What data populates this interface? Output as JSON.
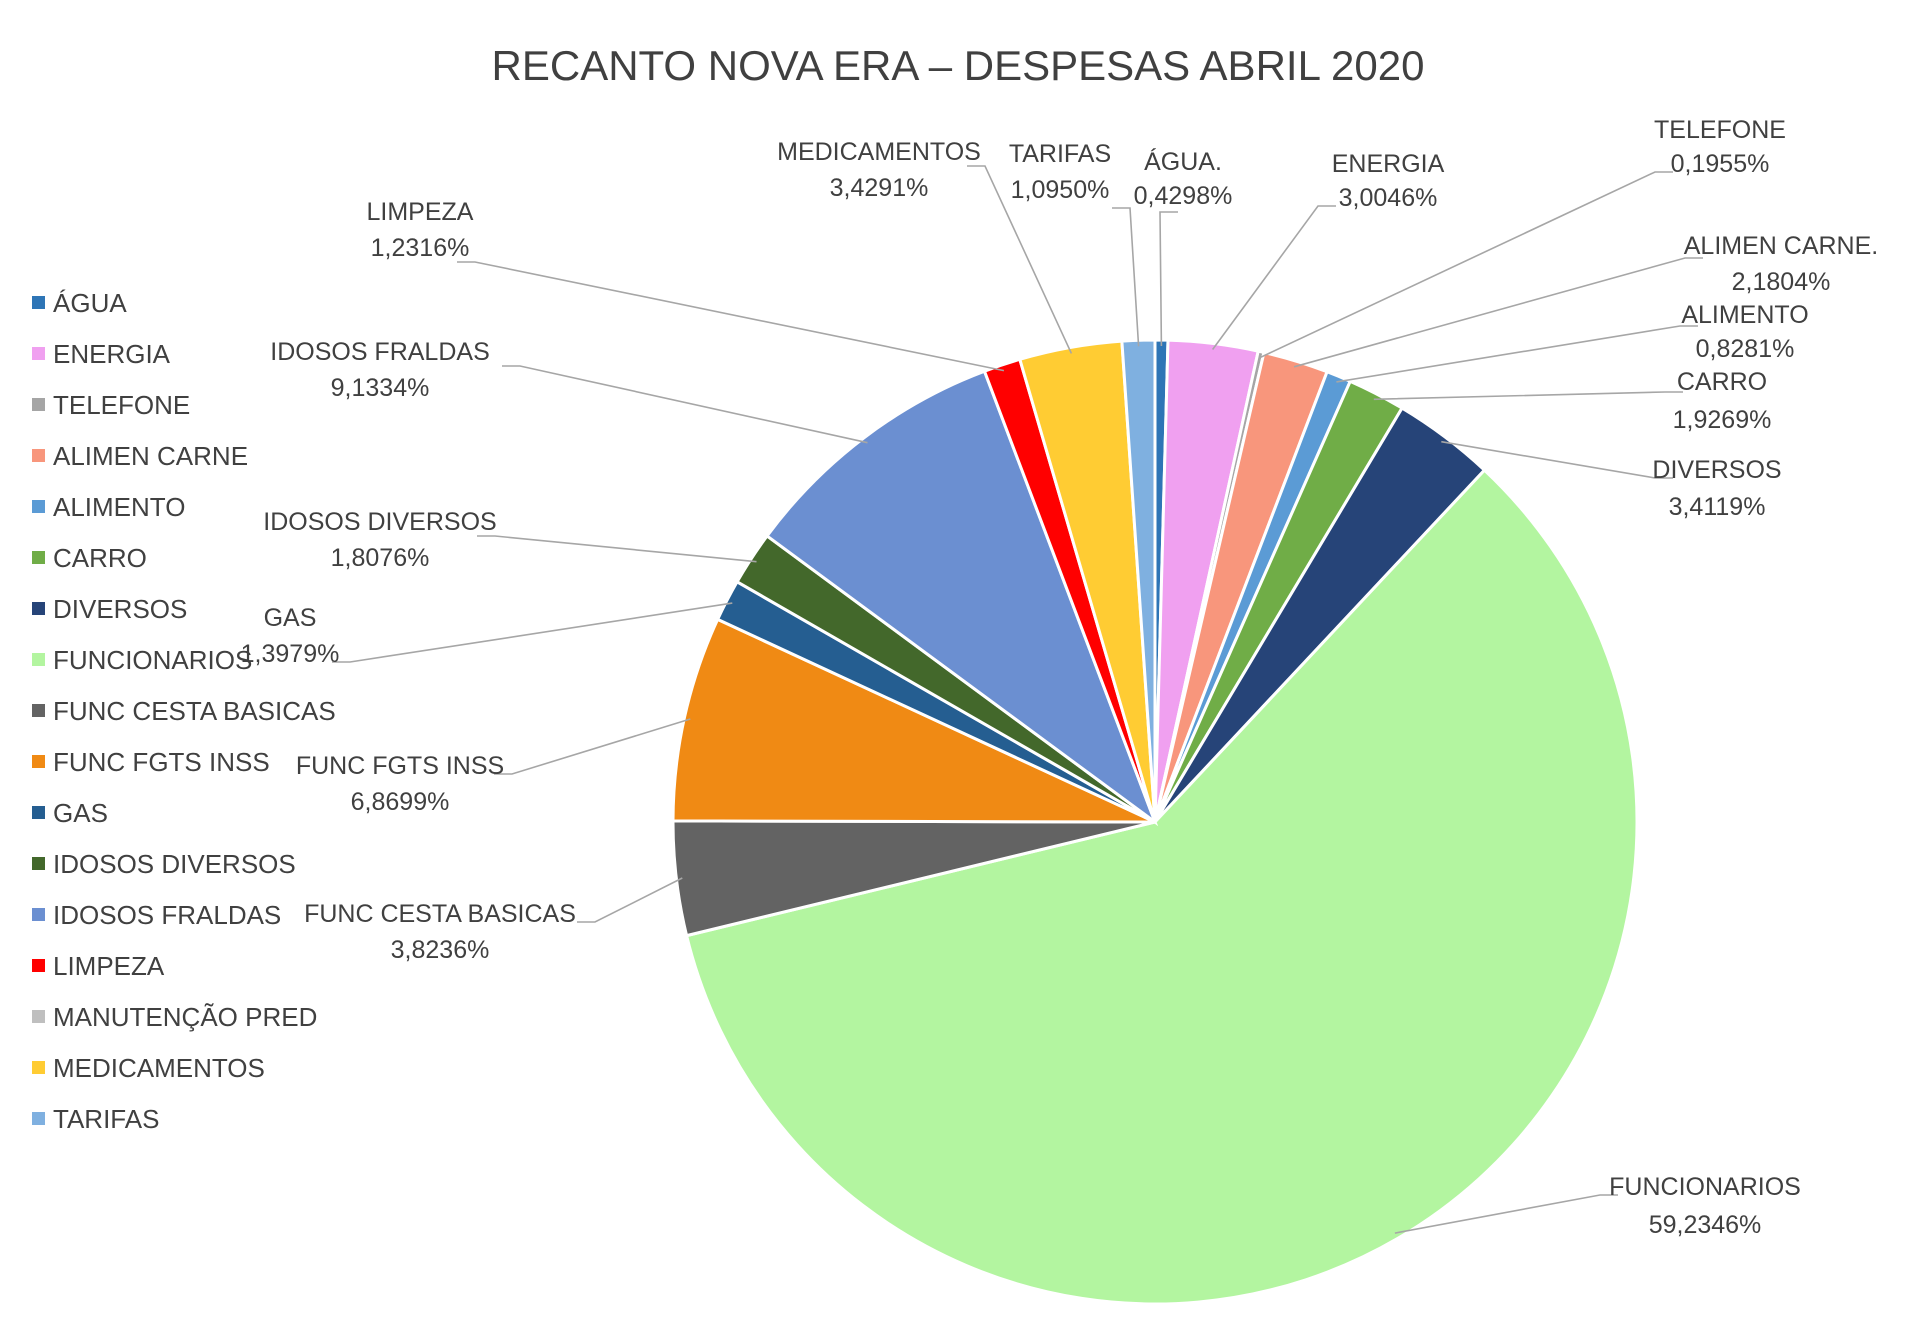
{
  "chart_data": {
    "type": "pie",
    "title": "RECANTO NOVA ERA – DESPESAS ABRIL 2020",
    "legend_position": "left",
    "legend": [
      {
        "name": "ÁGUA",
        "color": "#2e75b6"
      },
      {
        "name": "ENERGIA",
        "color": "#f0a0f0"
      },
      {
        "name": "TELEFONE",
        "color": "#a5a5a5"
      },
      {
        "name": "ALIMEN CARNE",
        "color": "#f8967c"
      },
      {
        "name": "ALIMENTO",
        "color": "#5b9bd5"
      },
      {
        "name": "CARRO",
        "color": "#70ad47"
      },
      {
        "name": "DIVERSOS",
        "color": "#264478"
      },
      {
        "name": "FUNCIONARIOS",
        "color": "#b3f5a0"
      },
      {
        "name": "FUNC CESTA BASICAS",
        "color": "#636363"
      },
      {
        "name": "FUNC FGTS INSS",
        "color": "#f08a14"
      },
      {
        "name": "GAS",
        "color": "#255e91"
      },
      {
        "name": "IDOSOS DIVERSOS",
        "color": "#43682b"
      },
      {
        "name": "IDOSOS FRALDAS",
        "color": "#6b8fd1"
      },
      {
        "name": "LIMPEZA",
        "color": "#ff0000"
      },
      {
        "name": "MANUTENÇÃO PRED",
        "color": "#bfbfbf"
      },
      {
        "name": "MEDICAMENTOS",
        "color": "#ffcc33"
      },
      {
        "name": "TARIFAS",
        "color": "#7fb0e0"
      }
    ],
    "slices": [
      {
        "name": "ÁGUA",
        "label": "ÁGUA.",
        "value": 0.4298,
        "value_label": "0,4298%",
        "color": "#2e75b6"
      },
      {
        "name": "ENERGIA",
        "label": "ENERGIA",
        "value": 3.0046,
        "value_label": "3,0046%",
        "color": "#f0a0f0"
      },
      {
        "name": "TELEFONE",
        "label": "TELEFONE",
        "value": 0.1955,
        "value_label": "0,1955%",
        "color": "#a5a5a5"
      },
      {
        "name": "ALIMEN CARNE",
        "label": "ALIMEN CARNE.",
        "value": 2.1804,
        "value_label": "2,1804%",
        "color": "#f8967c"
      },
      {
        "name": "ALIMENTO",
        "label": "ALIMENTO",
        "value": 0.8281,
        "value_label": "0,8281%",
        "color": "#5b9bd5"
      },
      {
        "name": "CARRO",
        "label": "CARRO",
        "value": 1.9269,
        "value_label": "1,9269%",
        "color": "#70ad47"
      },
      {
        "name": "DIVERSOS",
        "label": "DIVERSOS",
        "value": 3.4119,
        "value_label": "3,4119%",
        "color": "#264478"
      },
      {
        "name": "FUNCIONARIOS",
        "label": "FUNCIONARIOS",
        "value": 59.2346,
        "value_label": "59,2346%",
        "color": "#b3f5a0"
      },
      {
        "name": "FUNC CESTA BASICAS",
        "label": "FUNC CESTA BASICAS",
        "value": 3.8236,
        "value_label": "3,8236%",
        "color": "#636363"
      },
      {
        "name": "FUNC FGTS INSS",
        "label": "FUNC FGTS INSS",
        "value": 6.8699,
        "value_label": "6,8699%",
        "color": "#f08a14"
      },
      {
        "name": "GAS",
        "label": "GAS",
        "value": 1.3979,
        "value_label": "1,3979%",
        "color": "#255e91"
      },
      {
        "name": "IDOSOS DIVERSOS",
        "label": "IDOSOS DIVERSOS",
        "value": 1.8076,
        "value_label": "1,8076%",
        "color": "#43682b"
      },
      {
        "name": "IDOSOS FRALDAS",
        "label": "IDOSOS FRALDAS",
        "value": 9.1334,
        "value_label": "9,1334%",
        "color": "#6b8fd1"
      },
      {
        "name": "LIMPEZA",
        "label": "LIMPEZA",
        "value": 1.2316,
        "value_label": "1,2316%",
        "color": "#ff0000"
      },
      {
        "name": "MANUTENÇÃO PRED",
        "label": "",
        "value": 0,
        "value_label": "",
        "color": "#bfbfbf"
      },
      {
        "name": "MEDICAMENTOS",
        "label": "MEDICAMENTOS",
        "value": 3.4291,
        "value_label": "3,4291%",
        "color": "#ffcc33"
      },
      {
        "name": "TARIFAS",
        "label": "TARIFAS",
        "value": 1.095,
        "value_label": "1,0950%",
        "color": "#7fb0e0"
      }
    ]
  }
}
